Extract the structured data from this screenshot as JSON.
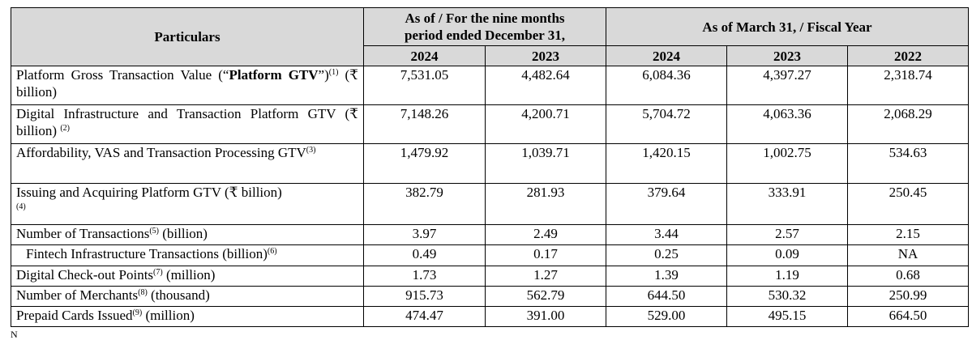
{
  "header": {
    "particulars": "Particulars",
    "group1_line1": "As of / For the nine months",
    "group1_line2": "period ended December 31,",
    "group2": "As of March 31, / Fiscal Year",
    "years": [
      "2024",
      "2023",
      "2024",
      "2023",
      "2022"
    ]
  },
  "rows": [
    {
      "label_a": "Platform Gross Transaction Value (“",
      "label_bold": "Platform GTV",
      "label_b": "”)",
      "sup": "(1)",
      "label_c": " (₹ billion)",
      "values": [
        "7,531.05",
        "4,482.64",
        "6,084.36",
        "4,397.27",
        "2,318.74"
      ]
    },
    {
      "label_a": "Digital Infrastructure and Transaction Platform GTV (₹ billion) ",
      "sup": "(2)",
      "values": [
        "7,148.26",
        "4,200.71",
        "5,704.72",
        "4,063.36",
        "2,068.29"
      ]
    },
    {
      "label_a": "Affordability, VAS and Transaction Processing GTV",
      "sup": "(3)",
      "values": [
        "1,479.92",
        "1,039.71",
        "1,420.15",
        "1,002.75",
        "534.63"
      ]
    },
    {
      "label_a": "Issuing and Acquiring Platform GTV (₹ billion)",
      "foot": "(4)",
      "values": [
        "382.79",
        "281.93",
        "379.64",
        "333.91",
        "250.45"
      ]
    },
    {
      "label_a": "Number of Transactions",
      "sup": "(5)",
      "label_c": " (billion)",
      "values": [
        "3.97",
        "2.49",
        "3.44",
        "2.57",
        "2.15"
      ]
    },
    {
      "label_a": "Fintech Infrastructure Transactions (billion)",
      "sup": "(6)",
      "values": [
        "0.49",
        "0.17",
        "0.25",
        "0.09",
        "NA"
      ]
    },
    {
      "label_a": "Digital Check-out Points",
      "sup": "(7)",
      "label_c": " (million)",
      "values": [
        "1.73",
        "1.27",
        "1.39",
        "1.19",
        "0.68"
      ]
    },
    {
      "label_a": "Number of Merchants",
      "sup": "(8)",
      "label_c": " (thousand)",
      "values": [
        "915.73",
        "562.79",
        "644.50",
        "530.32",
        "250.99"
      ]
    },
    {
      "label_a": "Prepaid Cards Issued",
      "sup": "(9)",
      "label_c": " (million)",
      "values": [
        "474.47",
        "391.00",
        "529.00",
        "495.15",
        "664.50"
      ]
    }
  ],
  "trailing_text": "N"
}
